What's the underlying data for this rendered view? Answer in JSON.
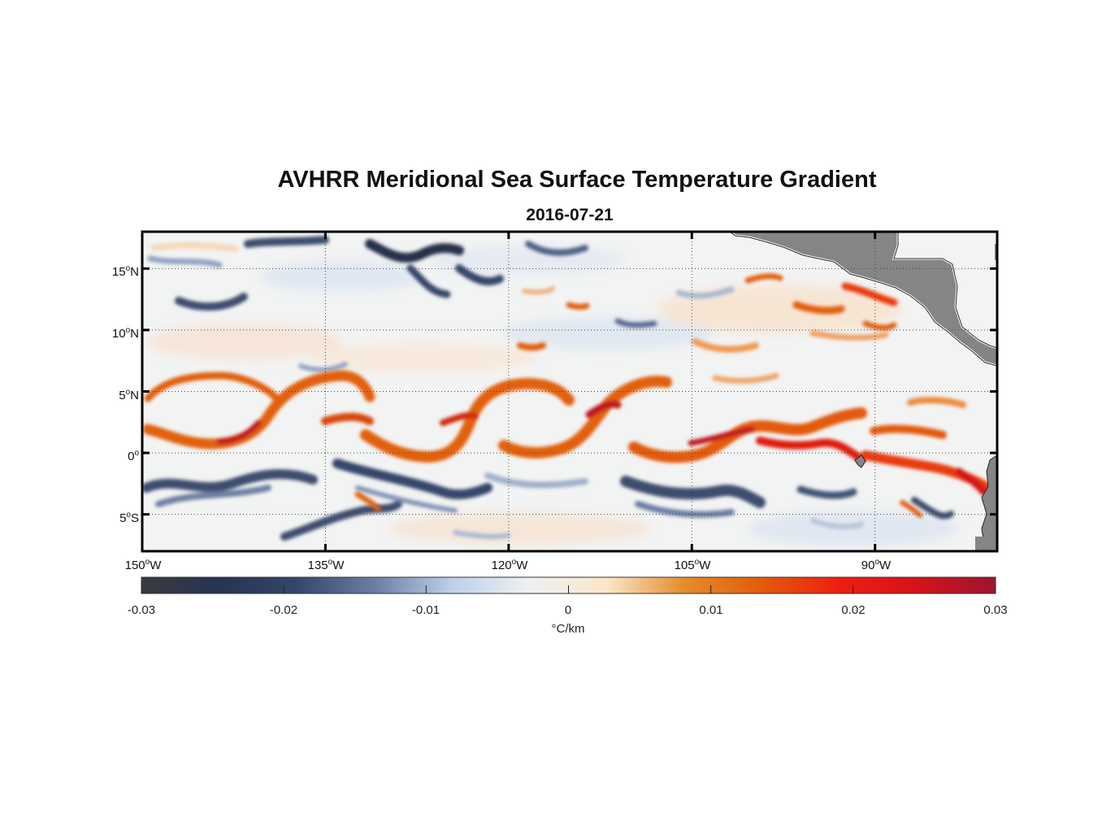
{
  "title": "AVHRR Meridional Sea Surface Temperature Gradient",
  "subtitle": "2016-07-21",
  "map": {
    "lon_range": [
      -150,
      -80
    ],
    "lat_range": [
      -8,
      18
    ],
    "lat_ticks": [
      {
        "lat": 15,
        "num": "15",
        "deg": "o",
        "hem": "N"
      },
      {
        "lat": 10,
        "num": "10",
        "deg": "o",
        "hem": "N"
      },
      {
        "lat": 5,
        "num": "5",
        "deg": "o",
        "hem": "N"
      },
      {
        "lat": 0,
        "num": "0",
        "deg": "o",
        "hem": ""
      },
      {
        "lat": -5,
        "num": "5",
        "deg": "o",
        "hem": "S"
      }
    ],
    "lon_ticks": [
      {
        "lon": -150,
        "num": "150",
        "deg": "o",
        "hem": "W"
      },
      {
        "lon": -135,
        "num": "135",
        "deg": "o",
        "hem": "W"
      },
      {
        "lon": -120,
        "num": "120",
        "deg": "o",
        "hem": "W"
      },
      {
        "lon": -105,
        "num": "105",
        "deg": "o",
        "hem": "W"
      },
      {
        "lon": -90,
        "num": "90",
        "deg": "o",
        "hem": "W"
      }
    ],
    "colors": {
      "land": "#858585",
      "strong_positive": "#c0141c",
      "positive": "#e2600e",
      "weak_positive": "#f6c8a0",
      "weak_negative": "#b9cbe2",
      "negative": "#3c4d6e",
      "strong_negative": "#26324c"
    }
  },
  "colorbar": {
    "label": "°C/km",
    "min": -0.03,
    "max": 0.03,
    "ticks": [
      "-0.03",
      "-0.02",
      "-0.01",
      "0",
      "0.01",
      "0.02",
      "0.03"
    ],
    "stops": [
      "#3a3a40",
      "#253451",
      "#34466b",
      "#6a7ea4",
      "#bdd0e8",
      "#eef1f2",
      "#fbe6c8",
      "#e48c2a",
      "#e35a0a",
      "#ee1e10",
      "#d31418",
      "#9c1432"
    ]
  }
}
